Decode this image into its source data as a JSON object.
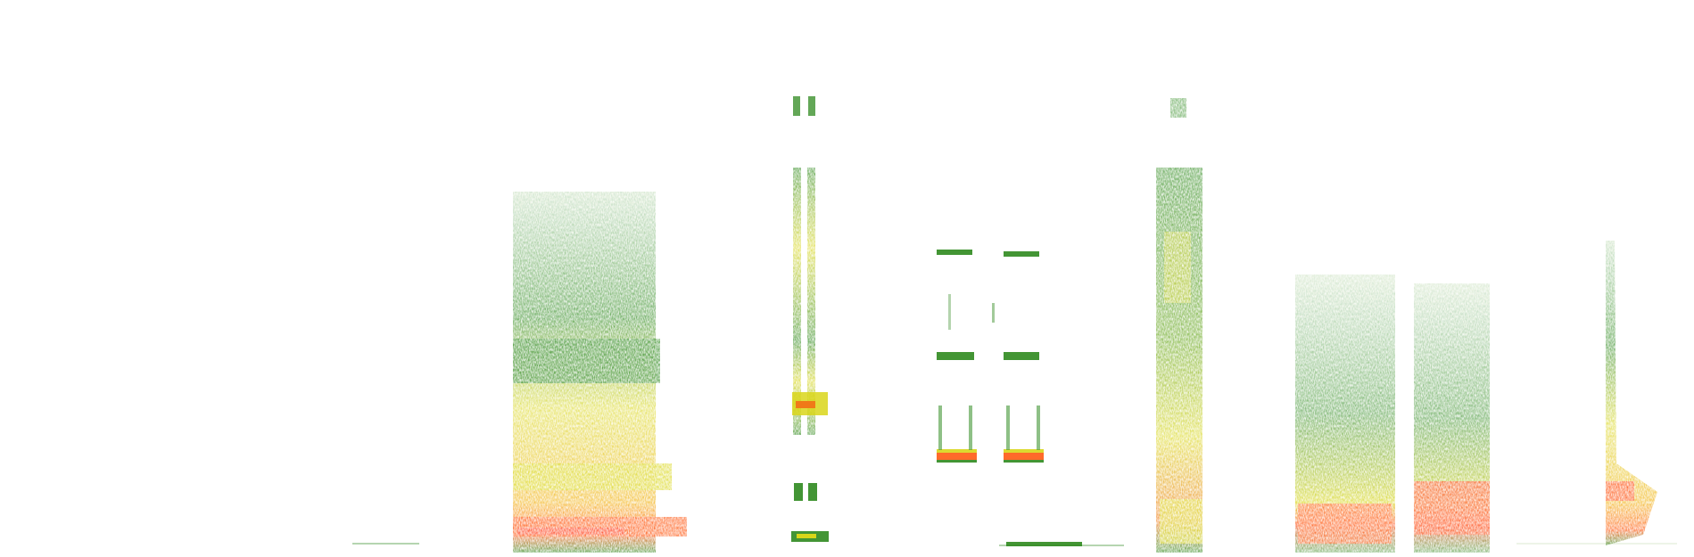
{
  "image": {
    "kind": "spectrogram",
    "background": "#ffffff",
    "palette": {
      "low": "#2f8a1f",
      "mid": "#d9d61a",
      "high": "#f06a1a",
      "peak": "#ff3a10"
    }
  }
}
